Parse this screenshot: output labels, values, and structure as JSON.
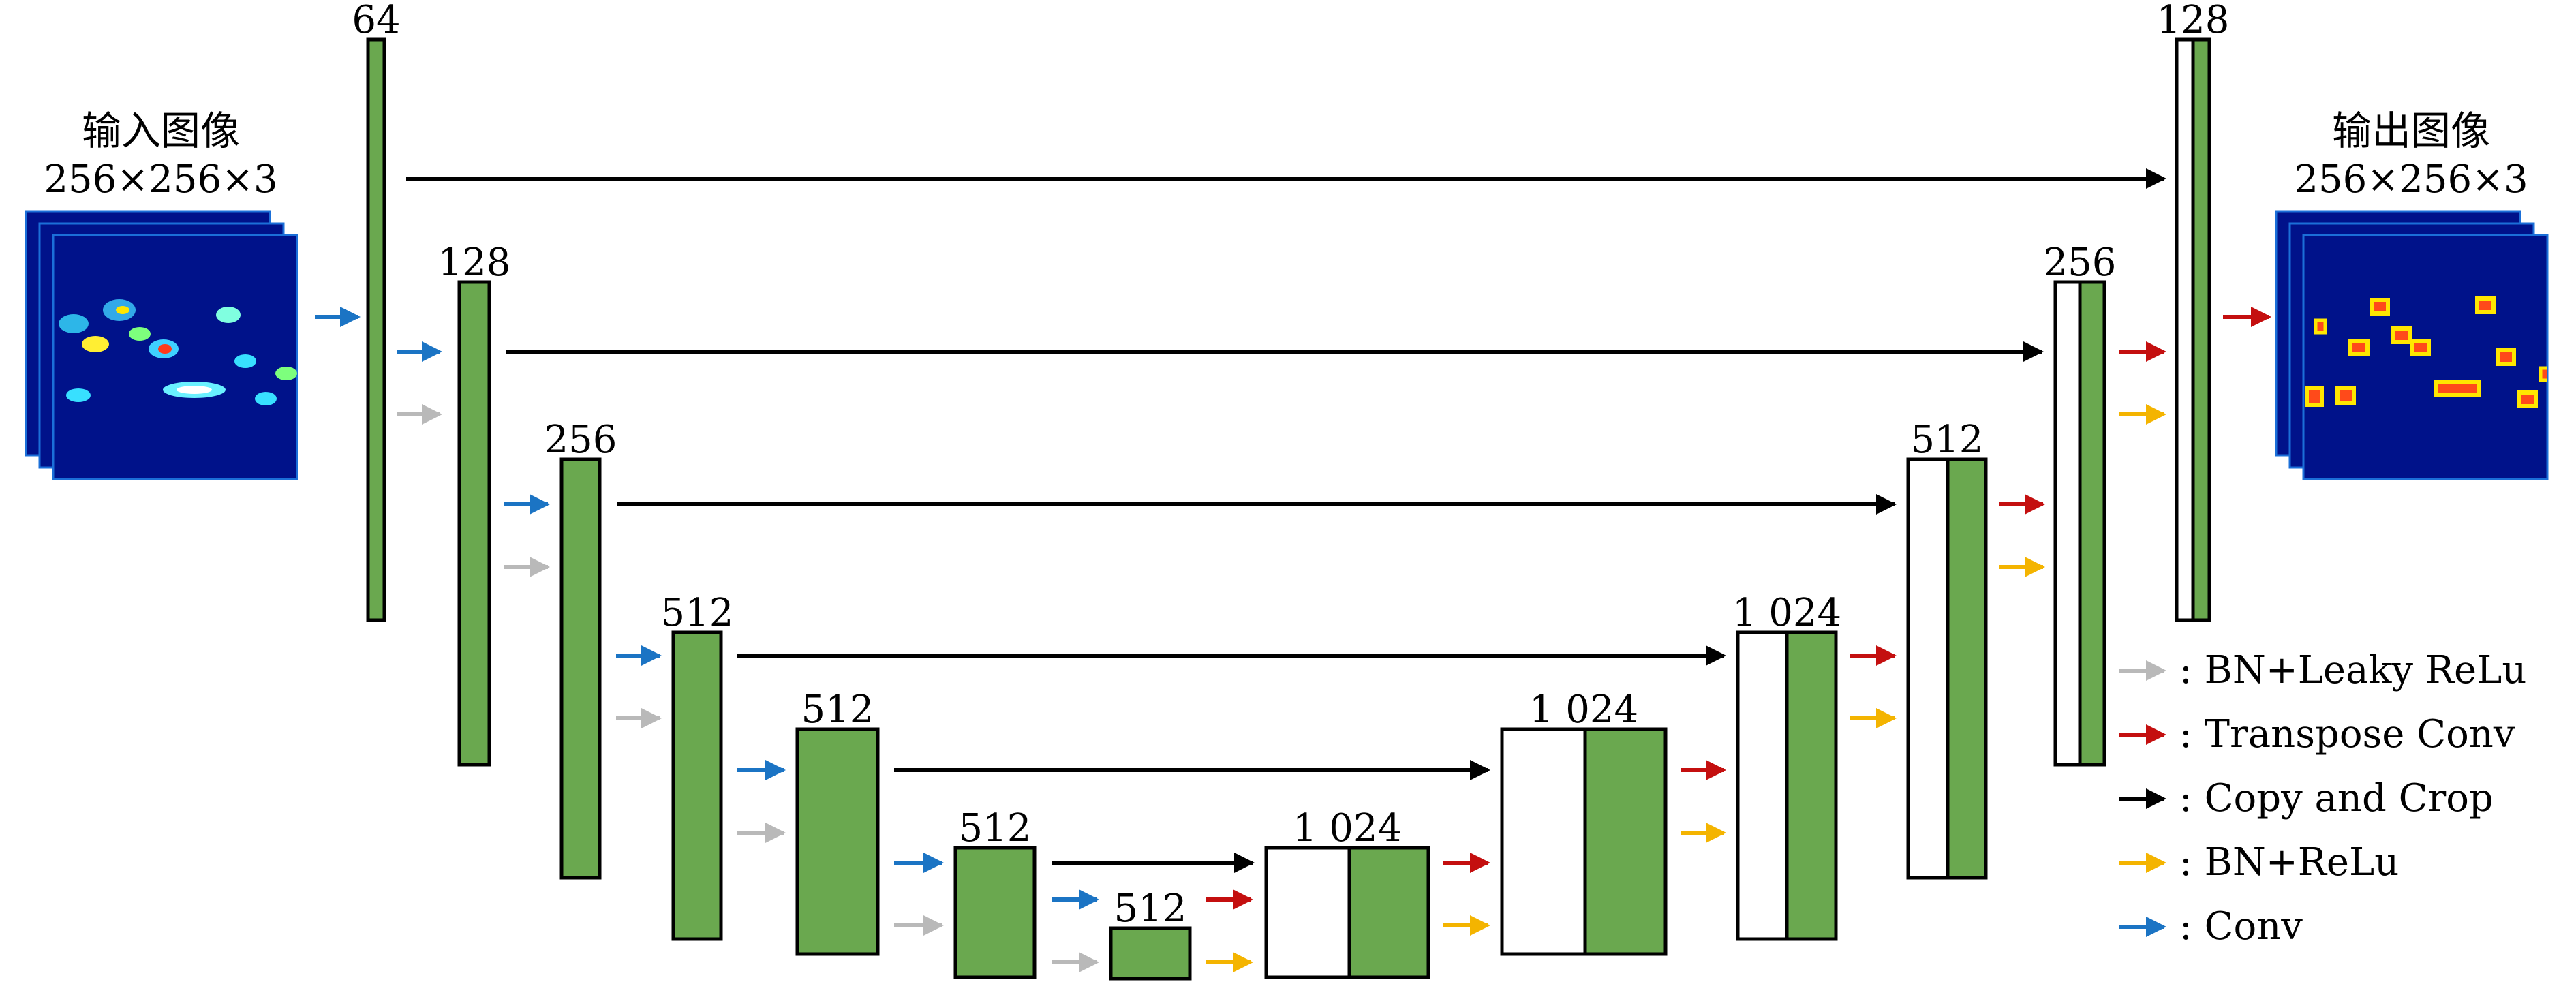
{
  "input_image": {
    "title": "输入图像",
    "size": "256×256×3"
  },
  "output_image": {
    "title": "输出图像",
    "size": "256×256×3"
  },
  "encoder_labels": [
    "64",
    "128",
    "256",
    "512",
    "512",
    "512",
    "512"
  ],
  "decoder_labels": [
    "1 024",
    "1 024",
    "1 024",
    "512",
    "256",
    "128"
  ],
  "colors": {
    "block_green": "#6aa84f",
    "arrow_conv": "#1b74c4",
    "arrow_bn_leaky_relu": "#b9b9b9",
    "arrow_transpose_conv": "#c40f0f",
    "arrow_copy_crop": "#000000",
    "arrow_bn_relu": "#f4b400"
  },
  "legend": [
    {
      "key": "bn_leaky_relu",
      "label": ": BN+Leaky ReLu"
    },
    {
      "key": "transpose_conv",
      "label": ": Transpose Conv"
    },
    {
      "key": "copy_crop",
      "label": ": Copy and Crop"
    },
    {
      "key": "bn_relu",
      "label": ": BN+ReLu"
    },
    {
      "key": "conv",
      "label": ": Conv"
    }
  ]
}
